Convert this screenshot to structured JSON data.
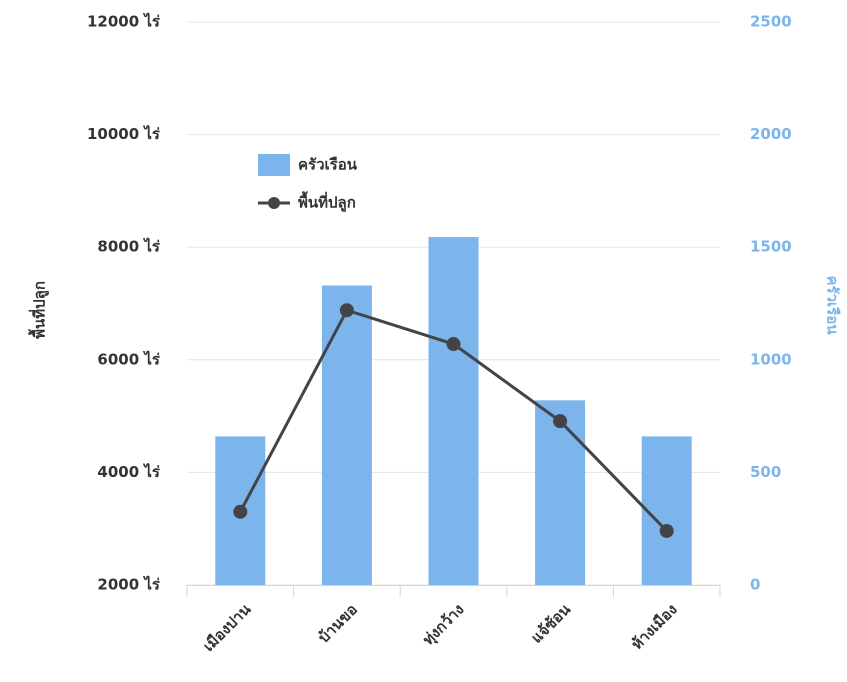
{
  "chart_data": {
    "type": "combo",
    "categories": [
      "เมืองปาน",
      "บ้านขอ",
      "ทุ่งกว้าง",
      "แจ้ซ้อน",
      "ห้างเมือง"
    ],
    "series": [
      {
        "name": "ครัวเรือน",
        "type": "bar",
        "axis": "y2",
        "color": "#7cb5ec",
        "values": [
          660,
          1330,
          1545,
          820,
          660
        ]
      },
      {
        "name": "พื้นที่ปลูก",
        "type": "line",
        "axis": "y",
        "color": "#434348",
        "values": [
          3300,
          6880,
          6280,
          4910,
          2960
        ]
      }
    ],
    "ylabel": "พื้นที่ปลูก",
    "y2label": "ครัวเรือน",
    "ylim": [
      2000,
      12000
    ],
    "yticks": [
      {
        "value": 2000,
        "label": "2000 ไร่"
      },
      {
        "value": 4000,
        "label": "4000 ไร่"
      },
      {
        "value": 6000,
        "label": "6000 ไร่"
      },
      {
        "value": 8000,
        "label": "8000 ไร่"
      },
      {
        "value": 10000,
        "label": "10000 ไร่"
      },
      {
        "value": 12000,
        "label": "12000 ไร่"
      }
    ],
    "y2lim": [
      0,
      2500
    ],
    "y2ticks": [
      0,
      500,
      1000,
      1500,
      2000,
      2500
    ],
    "grid": true,
    "legend": "upper left"
  }
}
